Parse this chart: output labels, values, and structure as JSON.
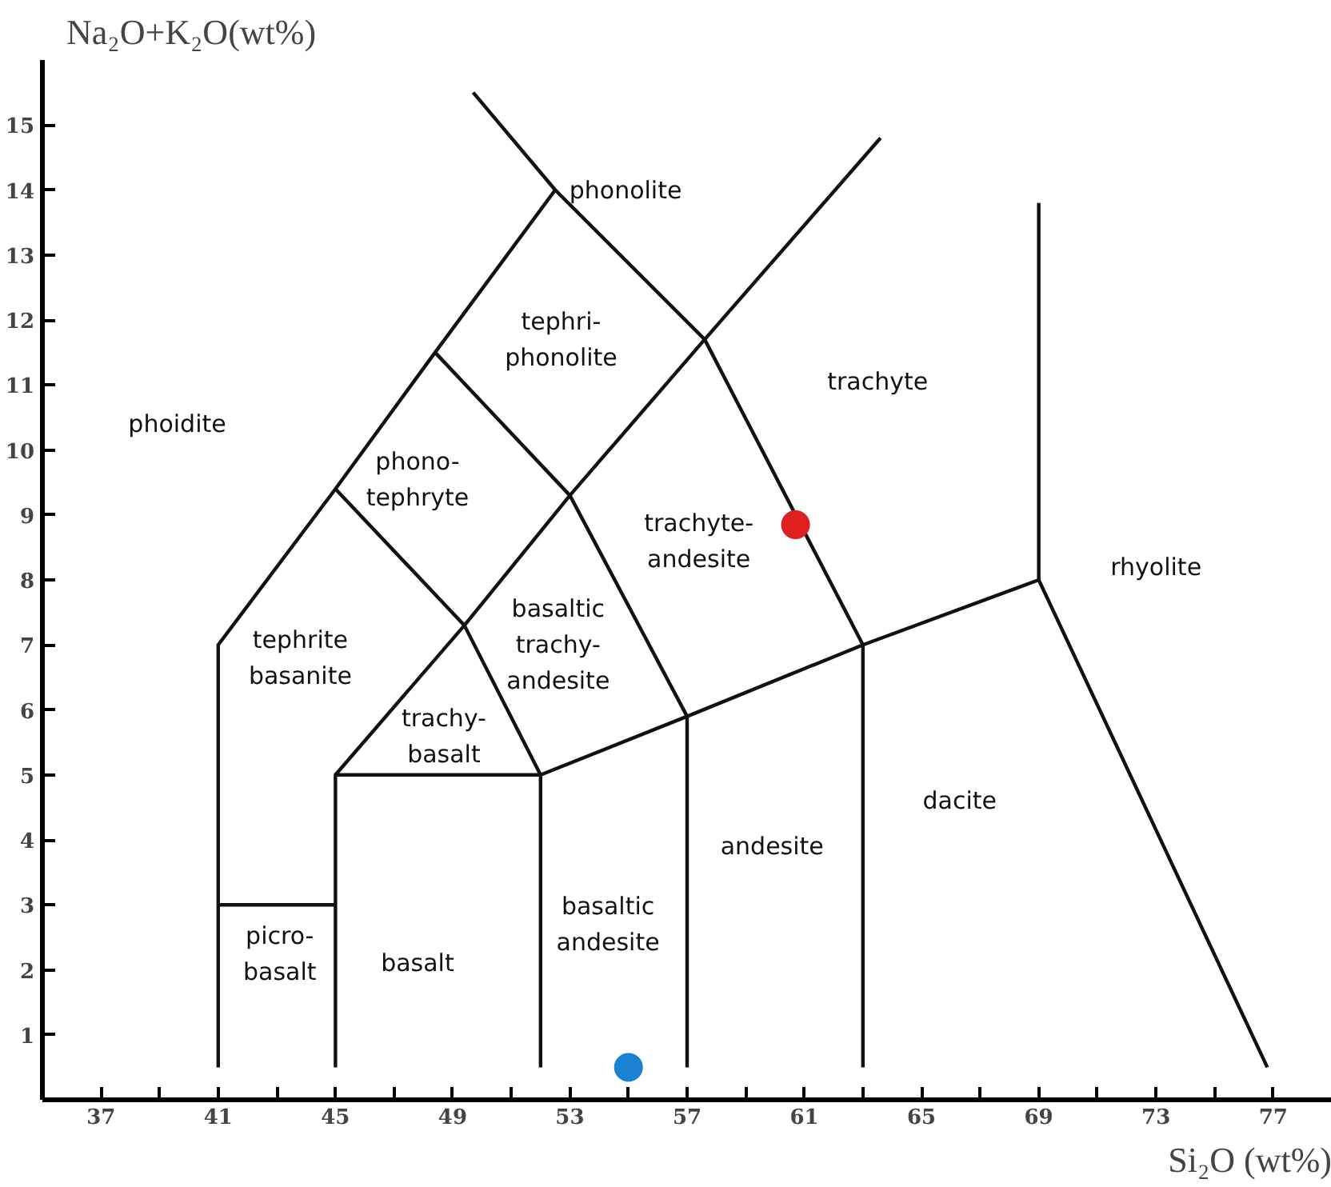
{
  "chart_data": {
    "type": "scatter",
    "xlabel": "Si₂O (wt%)",
    "ylabel": "Na₂O+K₂O(wt%)",
    "xlim": [
      35,
      79
    ],
    "ylim": [
      0,
      16
    ],
    "xticks": [
      37,
      41,
      45,
      49,
      53,
      57,
      61,
      65,
      69,
      73,
      77
    ],
    "yticks": [
      1,
      2,
      3,
      4,
      5,
      6,
      7,
      8,
      9,
      10,
      11,
      12,
      13,
      14,
      15
    ],
    "grid": false,
    "series": [
      {
        "marker": "circle",
        "x": [
          60.7,
          55.0
        ],
        "values": [
          8.85,
          0.5
        ],
        "colors": [
          "#e0201e",
          "#1a82d0"
        ]
      },
      {
        "type": "line",
        "color": "#111111",
        "x": [
          41,
          41,
          45,
          48.4,
          52.5,
          49.7
        ],
        "values": [
          0.5,
          7,
          9.4,
          11.5,
          14,
          15.5
        ]
      },
      {
        "type": "line",
        "color": "#111111",
        "x": [
          52.5,
          57.6,
          63,
          63
        ],
        "values": [
          14,
          11.7,
          7,
          0.5
        ]
      },
      {
        "type": "line",
        "color": "#111111",
        "x": [
          45,
          45,
          52,
          52
        ],
        "values": [
          0.5,
          5,
          5,
          0.5
        ]
      },
      {
        "type": "line",
        "color": "#111111",
        "x": [
          41,
          45
        ],
        "values": [
          3,
          3
        ]
      },
      {
        "type": "line",
        "color": "#111111",
        "x": [
          45,
          49.4,
          53,
          57.6,
          63.6
        ],
        "values": [
          5,
          7.3,
          9.3,
          11.7,
          14.8
        ]
      },
      {
        "type": "line",
        "color": "#111111",
        "x": [
          45,
          49.4,
          52,
          57,
          63,
          69,
          76.8
        ],
        "values": [
          9.4,
          7.3,
          5,
          5.9,
          7,
          8,
          0.5
        ]
      },
      {
        "type": "line",
        "color": "#111111",
        "x": [
          48.4,
          53,
          57,
          57
        ],
        "values": [
          11.5,
          9.3,
          5.9,
          0.5
        ]
      },
      {
        "type": "line",
        "color": "#111111",
        "x": [
          69,
          69
        ],
        "values": [
          8,
          13.8
        ]
      }
    ],
    "annotations": [
      "phonolite",
      "tephri-\nphonolite",
      "trachyte",
      "phoidite",
      "phono-\ntephryte",
      "trachyte-\nandesite",
      "rhyolite",
      "tephrite\nbasanite",
      "basaltic\ntrachy-\nandesite",
      "trachy-\nbasalt",
      "dacite",
      "basaltic\nandesite",
      "andesite",
      "basalt",
      "picro-\nbasalt"
    ]
  }
}
